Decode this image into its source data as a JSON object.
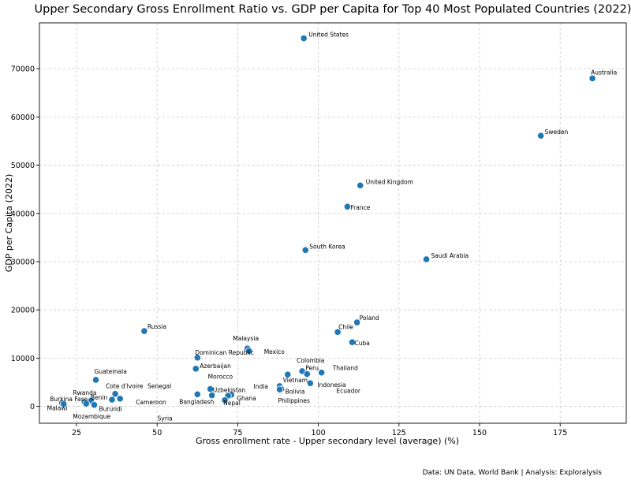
{
  "chart_data": {
    "type": "scatter",
    "title": "Upper Secondary Gross Enrollment Ratio vs. GDP per Capita for Top 40 Most Populated Countries (2022)",
    "xlabel": "Gross enrollment rate - Upper secondary level (average) (%)",
    "ylabel": "GDP per Capita (2022)",
    "xlim": [
      13.5,
      195.5
    ],
    "ylim": [
      -3500,
      79500
    ],
    "xticks": [
      25,
      50,
      75,
      100,
      125,
      150,
      175
    ],
    "yticks": [
      0,
      10000,
      20000,
      30000,
      40000,
      50000,
      60000,
      70000
    ],
    "grid": true,
    "source": "Data: UN Data, World Bank | Analysis: Exploralysis",
    "points": [
      {
        "label": "United States",
        "x": 95.5,
        "y": 76300
      },
      {
        "label": "Australia",
        "x": 185,
        "y": 68000
      },
      {
        "label": "Sweden",
        "x": 169,
        "y": 56100
      },
      {
        "label": "United Kingdom",
        "x": 113,
        "y": 45800
      },
      {
        "label": "France",
        "x": 109,
        "y": 41400
      },
      {
        "label": "South Korea",
        "x": 96,
        "y": 32400
      },
      {
        "label": "Saudi Arabia",
        "x": 133.5,
        "y": 30500
      },
      {
        "label": "Poland",
        "x": 112,
        "y": 17400
      },
      {
        "label": "Chile",
        "x": 106,
        "y": 15400
      },
      {
        "label": "Russia",
        "x": 46,
        "y": 15600
      },
      {
        "label": "Cuba",
        "x": 110.5,
        "y": 13300
      },
      {
        "label": "Malaysia",
        "x": 78,
        "y": 12000
      },
      {
        "label": "Mexico",
        "x": 78.5,
        "y": 11500
      },
      {
        "label": "Dominican Republic",
        "x": 62.5,
        "y": 10100
      },
      {
        "label": "Azerbaijan",
        "x": 62,
        "y": 7800
      },
      {
        "label": "Colombia",
        "x": 95,
        "y": 7300
      },
      {
        "label": "Peru",
        "x": 96.5,
        "y": 6700
      },
      {
        "label": "Thailand",
        "x": 101,
        "y": 7000
      },
      {
        "label": "Vietnam",
        "x": 90.5,
        "y": 6600
      },
      {
        "label": "Ecuador",
        "x": 97.5,
        "y": 4900
      },
      {
        "label": "Indonesia",
        "x": 97.5,
        "y": 4800
      },
      {
        "label": "India",
        "x": 88,
        "y": 4200
      },
      {
        "label": "Bolivia",
        "x": 88.5,
        "y": 3600
      },
      {
        "label": "Philippines",
        "x": 88,
        "y": 3500
      },
      {
        "label": "Guatemala",
        "x": 31,
        "y": 5500
      },
      {
        "label": "Morocco",
        "x": 66.5,
        "y": 3600
      },
      {
        "label": "Uzbekistan",
        "x": 67,
        "y": 2300
      },
      {
        "label": "Ghana",
        "x": 73,
        "y": 2400
      },
      {
        "label": "Bangladesh",
        "x": 62.5,
        "y": 2500
      },
      {
        "label": "Nepal",
        "x": 72,
        "y": 2200
      },
      {
        "label": "Senegal",
        "x": 71,
        "y": 1300
      },
      {
        "label": "Cote d'Ivoire",
        "x": 37,
        "y": 2600
      },
      {
        "label": "Cameroon",
        "x": 38.5,
        "y": 1600
      },
      {
        "label": "Benin",
        "x": 36,
        "y": 1400
      },
      {
        "label": "Rwanda",
        "x": 29.5,
        "y": 1200
      },
      {
        "label": "Burundi",
        "x": 30.5,
        "y": 300
      },
      {
        "label": "Burkina Faso",
        "x": 27.5,
        "y": 900
      },
      {
        "label": "Mozambique",
        "x": 28,
        "y": 550
      },
      {
        "label": "Malawi",
        "x": 20.5,
        "y": 700
      },
      {
        "label": "Syria",
        "x": 21,
        "y": 500
      }
    ]
  }
}
